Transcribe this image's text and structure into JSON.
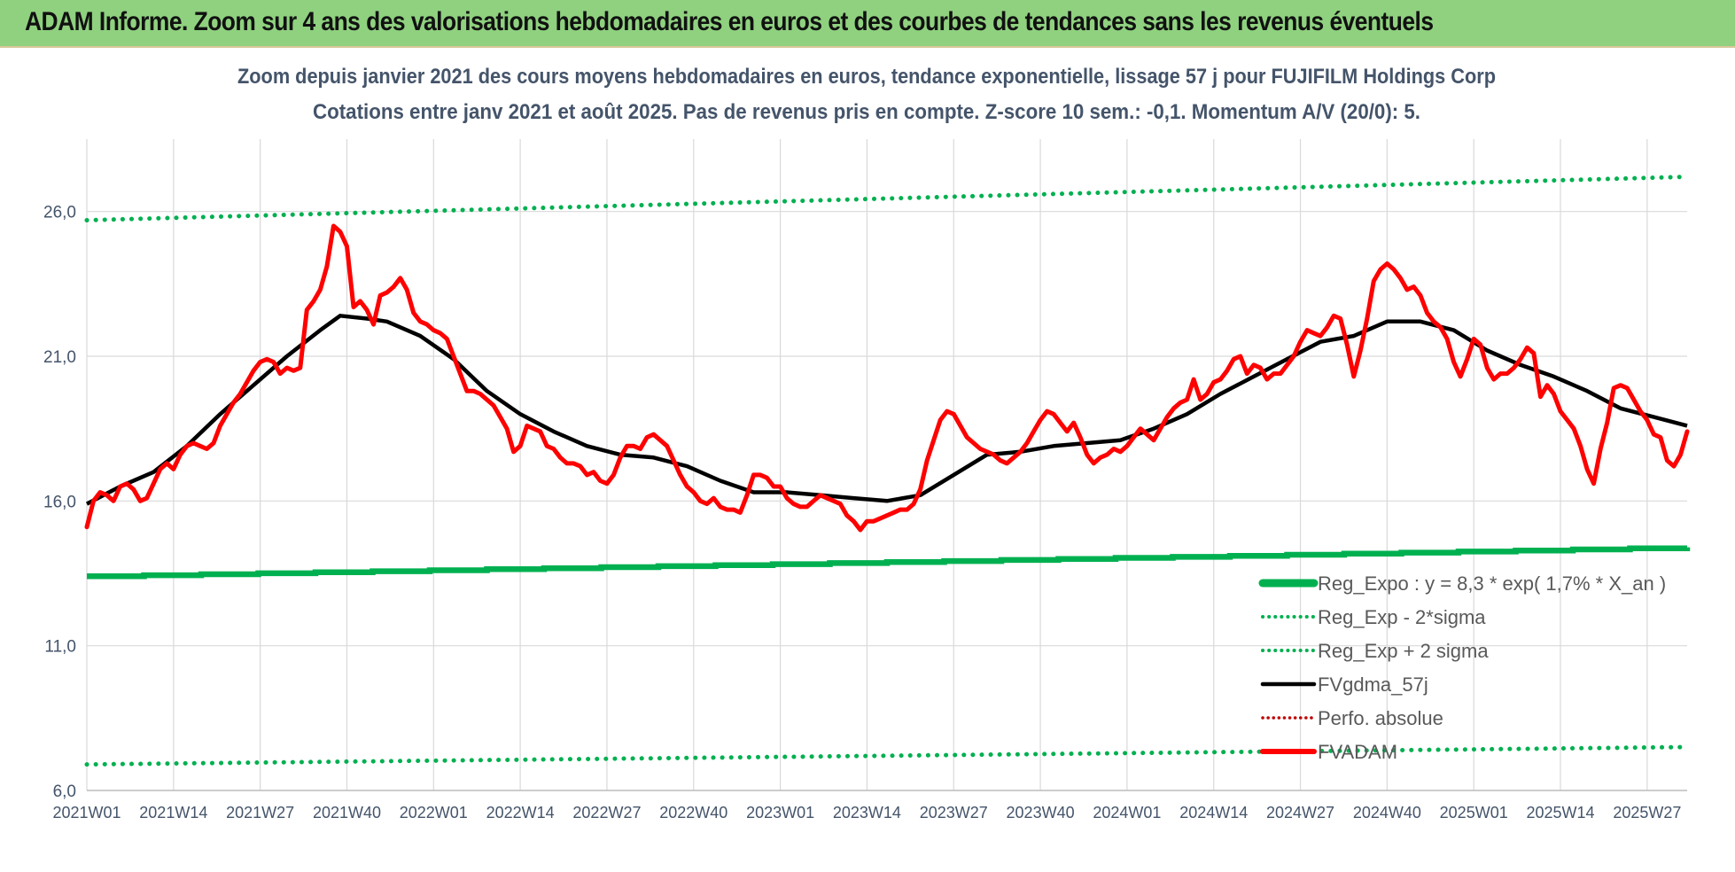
{
  "header": {
    "title": "ADAM Informe. Zoom sur 4 ans des valorisations hebdomadaires en euros et des courbes de tendances sans les revenus éventuels"
  },
  "colors": {
    "header_bg": "#8fd17f",
    "fvadam": "#ff0000",
    "fvgdma": "#000000",
    "regression": "#00b050",
    "perfo": "#c00000",
    "text": "#44546a",
    "grid": "#d9d9d9"
  },
  "chart_data": {
    "type": "line",
    "title": "Zoom depuis janvier 2021 des cours moyens hebdomadaires en euros, tendance exponentielle, lissage 57 j pour FUJIFILM Holdings Corp",
    "subtitle": "Cotations entre janv 2021 et août 2025. Pas de revenus pris en compte. Z-score 10 sem.: -0,1. Momentum A/V (20/0): 5.",
    "ylim": [
      6,
      28.5
    ],
    "yticks": [
      {
        "value": 6,
        "label": "6,0"
      },
      {
        "value": 11,
        "label": "11,0"
      },
      {
        "value": 16,
        "label": "16,0"
      },
      {
        "value": 21,
        "label": "21,0"
      },
      {
        "value": 26,
        "label": "26,0"
      }
    ],
    "x_categories": [
      "2021W01",
      "2021W14",
      "2021W27",
      "2021W40",
      "2022W01",
      "2022W14",
      "2022W27",
      "2022W40",
      "2023W01",
      "2023W14",
      "2023W27",
      "2023W40",
      "2024W01",
      "2024W14",
      "2024W27",
      "2024W40",
      "2025W01",
      "2025W14",
      "2025W27"
    ],
    "x_range_weeks": [
      0,
      240
    ],
    "legend": [
      "Reg_Expo : y = 8,3 * exp( 1,7% * X_an )",
      "Reg_Exp - 2*sigma",
      "Reg_Exp + 2 sigma",
      "FVgdma_57j",
      "Perfo. absolue",
      "FVADAM"
    ],
    "series": [
      {
        "name": "FVADAM",
        "style": "solid-thick",
        "x": [
          0,
          1,
          2,
          3,
          4,
          5,
          6,
          7,
          8,
          9,
          10,
          11,
          12,
          13,
          14,
          15,
          16,
          17,
          18,
          19,
          20,
          21,
          22,
          23,
          24,
          25,
          26,
          27,
          28,
          29,
          30,
          31,
          32,
          33,
          34,
          35,
          36,
          37,
          38,
          39,
          40,
          41,
          42,
          43,
          44,
          45,
          46,
          47,
          48,
          49,
          50,
          51,
          52,
          53,
          54,
          55,
          56,
          57,
          58,
          59,
          60,
          61,
          62,
          63,
          64,
          65,
          66,
          67,
          68,
          69,
          70,
          71,
          72,
          73,
          74,
          75,
          76,
          77,
          78,
          79,
          80,
          81,
          82,
          83,
          84,
          85,
          86,
          87,
          88,
          89,
          90,
          91,
          92,
          93,
          94,
          95,
          96,
          97,
          98,
          99,
          100,
          101,
          102,
          103,
          104,
          105,
          106,
          107,
          108,
          109,
          110,
          111,
          112,
          113,
          114,
          115,
          116,
          117,
          118,
          119,
          120,
          121,
          122,
          123,
          124,
          125,
          126,
          127,
          128,
          129,
          130,
          131,
          132,
          133,
          134,
          135,
          136,
          137,
          138,
          139,
          140,
          141,
          142,
          143,
          144,
          145,
          146,
          147,
          148,
          149,
          150,
          151,
          152,
          153,
          154,
          155,
          156,
          157,
          158,
          159,
          160,
          161,
          162,
          163,
          164,
          165,
          166,
          167,
          168,
          169,
          170,
          171,
          172,
          173,
          174,
          175,
          176,
          177,
          178,
          179,
          180,
          181,
          182,
          183,
          184,
          185,
          186,
          187,
          188,
          189,
          190,
          191,
          192,
          193,
          194,
          195,
          196,
          197,
          198,
          199,
          200,
          201,
          202,
          203,
          204,
          205,
          206,
          207,
          208,
          209,
          210,
          211,
          212,
          213,
          214,
          215,
          216,
          217,
          218,
          219,
          220,
          221,
          222,
          223,
          224,
          225,
          226,
          227,
          228,
          229,
          230,
          231,
          232,
          233,
          234,
          235,
          236,
          237,
          238,
          239,
          240
        ],
        "values": [
          15.1,
          16.0,
          16.3,
          16.2,
          16.0,
          16.5,
          16.6,
          16.4,
          16.0,
          16.1,
          16.6,
          17.1,
          17.3,
          17.1,
          17.6,
          17.9,
          18.0,
          17.9,
          17.8,
          18.0,
          18.6,
          19.0,
          19.4,
          19.7,
          20.1,
          20.5,
          20.8,
          20.9,
          20.8,
          20.4,
          20.6,
          20.5,
          20.6,
          22.6,
          22.9,
          23.3,
          24.1,
          25.5,
          25.3,
          24.8,
          22.7,
          22.9,
          22.6,
          22.1,
          23.1,
          23.2,
          23.4,
          23.7,
          23.3,
          22.5,
          22.2,
          22.1,
          21.9,
          21.8,
          21.6,
          21.0,
          20.4,
          19.8,
          19.8,
          19.7,
          19.5,
          19.3,
          18.9,
          18.5,
          17.7,
          17.9,
          18.6,
          18.5,
          18.4,
          17.9,
          17.8,
          17.5,
          17.3,
          17.3,
          17.2,
          16.9,
          17.0,
          16.7,
          16.6,
          16.9,
          17.5,
          17.9,
          17.9,
          17.8,
          18.2,
          18.3,
          18.1,
          17.9,
          17.4,
          16.9,
          16.5,
          16.3,
          16.0,
          15.9,
          16.1,
          15.8,
          15.7,
          15.7,
          15.6,
          16.2,
          16.9,
          16.9,
          16.8,
          16.5,
          16.5,
          16.1,
          15.9,
          15.8,
          15.8,
          16.0,
          16.2,
          16.1,
          16.0,
          15.9,
          15.5,
          15.3,
          15.0,
          15.3,
          15.3,
          15.4,
          15.5,
          15.6,
          15.7,
          15.7,
          15.9,
          16.4,
          17.4,
          18.1,
          18.8,
          19.1,
          19.0,
          18.6,
          18.2,
          18.0,
          17.8,
          17.7,
          17.6,
          17.4,
          17.3,
          17.5,
          17.7,
          18.0,
          18.4,
          18.8,
          19.1,
          19.0,
          18.7,
          18.4,
          18.7,
          18.2,
          17.6,
          17.3,
          17.5,
          17.6,
          17.8,
          17.7,
          17.9,
          18.2,
          18.5,
          18.3,
          18.1,
          18.5,
          18.9,
          19.2,
          19.4,
          19.5,
          20.2,
          19.5,
          19.7,
          20.1,
          20.2,
          20.5,
          20.9,
          21.0,
          20.4,
          20.7,
          20.6,
          20.2,
          20.4,
          20.4,
          20.7,
          21.0,
          21.5,
          21.9,
          21.8,
          21.7,
          22.0,
          22.4,
          22.3,
          21.4,
          20.3,
          21.2,
          22.3,
          23.6,
          24.0,
          24.2,
          24.0,
          23.7,
          23.3,
          23.4,
          23.1,
          22.5,
          22.2,
          22.0,
          21.6,
          20.8,
          20.3,
          20.9,
          21.6,
          21.4,
          20.6,
          20.2,
          20.4,
          20.4,
          20.6,
          20.9,
          21.3,
          21.1,
          19.6,
          20.0,
          19.7,
          19.1,
          18.8,
          18.5,
          17.9,
          17.1,
          16.6,
          17.8,
          18.7,
          19.9,
          20.0,
          19.9,
          19.5,
          19.1,
          18.8,
          18.3,
          18.2,
          17.4,
          17.2,
          17.6,
          18.4
        ]
      },
      {
        "name": "FVgdma_57j",
        "style": "solid",
        "x": [
          0,
          5,
          10,
          15,
          20,
          25,
          30,
          35,
          38,
          42,
          45,
          50,
          55,
          60,
          65,
          70,
          75,
          80,
          85,
          90,
          95,
          100,
          105,
          110,
          115,
          120,
          125,
          130,
          135,
          140,
          145,
          150,
          155,
          160,
          165,
          170,
          175,
          180,
          185,
          190,
          195,
          200,
          205,
          210,
          215,
          220,
          225,
          230,
          235,
          240
        ],
        "values": [
          15.9,
          16.5,
          17.0,
          17.9,
          19.0,
          20.0,
          21.0,
          21.9,
          22.4,
          22.3,
          22.2,
          21.7,
          20.9,
          19.8,
          19.0,
          18.4,
          17.9,
          17.6,
          17.5,
          17.2,
          16.7,
          16.3,
          16.3,
          16.2,
          16.1,
          16.0,
          16.2,
          16.9,
          17.6,
          17.7,
          17.9,
          18.0,
          18.1,
          18.5,
          19.0,
          19.7,
          20.3,
          20.9,
          21.5,
          21.7,
          22.2,
          22.2,
          21.9,
          21.2,
          20.7,
          20.3,
          19.8,
          19.2,
          18.9,
          18.6
        ]
      },
      {
        "name": "Reg_Expo : y = 8,3 * exp( 1,7% * X_an )",
        "style": "thick-step",
        "x": [
          0,
          240
        ],
        "values": [
          13.4,
          14.4
        ]
      },
      {
        "name": "Reg_Exp - 2*sigma",
        "style": "dotted",
        "x": [
          0,
          240
        ],
        "values": [
          6.9,
          7.5
        ]
      },
      {
        "name": "Reg_Exp + 2 sigma",
        "style": "dotted",
        "x": [
          0,
          240
        ],
        "values": [
          25.7,
          27.2
        ]
      }
    ]
  }
}
